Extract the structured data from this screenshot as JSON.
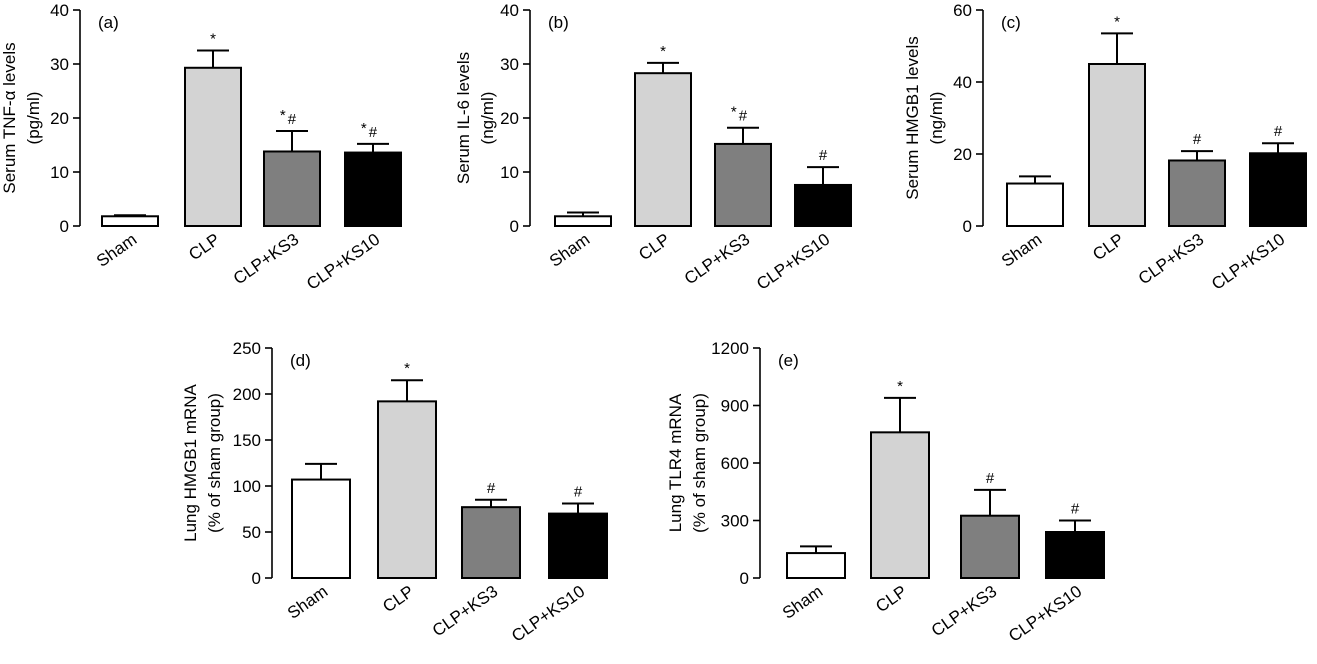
{
  "colors": {
    "Sham": "#ffffff",
    "CLP": "#d3d3d3",
    "CLP+KS3": "#7f7f7f",
    "CLP+KS10": "#000000",
    "axis": "#000000"
  },
  "chart_data": [
    {
      "type": "bar",
      "panel": "(a)",
      "categories": [
        "Sham",
        "CLP",
        "CLP+KS3",
        "CLP+KS10"
      ],
      "values": [
        1.8,
        29.3,
        13.8,
        13.6
      ],
      "errors": [
        0.2,
        3.2,
        3.8,
        1.6
      ],
      "significance": [
        "",
        "*",
        "*#",
        "*#"
      ],
      "ylabel": [
        "Serum TNF-α levels",
        "(pg/ml)"
      ],
      "ylim": [
        0,
        40
      ],
      "yticks": [
        0,
        10,
        20,
        30,
        40
      ]
    },
    {
      "type": "bar",
      "panel": "(b)",
      "categories": [
        "Sham",
        "CLP",
        "CLP+KS3",
        "CLP+KS10"
      ],
      "values": [
        1.8,
        28.3,
        15.2,
        7.6
      ],
      "errors": [
        0.7,
        1.9,
        3.0,
        3.3
      ],
      "significance": [
        "",
        "*",
        "*#",
        "#"
      ],
      "ylabel": [
        "Serum IL-6 levels",
        "(ng/ml)"
      ],
      "ylim": [
        0,
        40
      ],
      "yticks": [
        0,
        10,
        20,
        30,
        40
      ]
    },
    {
      "type": "bar",
      "panel": "(c)",
      "categories": [
        "Sham",
        "CLP",
        "CLP+KS3",
        "CLP+KS10"
      ],
      "values": [
        11.8,
        45.0,
        18.2,
        20.2
      ],
      "errors": [
        2.0,
        8.5,
        2.6,
        2.8
      ],
      "significance": [
        "",
        "*",
        "#",
        "#"
      ],
      "ylabel": [
        "Serum HMGB1 levels",
        "(ng/ml)"
      ],
      "ylim": [
        0,
        60
      ],
      "yticks": [
        0,
        20,
        40,
        60
      ]
    },
    {
      "type": "bar",
      "panel": "(d)",
      "categories": [
        "Sham",
        "CLP",
        "CLP+KS3",
        "CLP+KS10"
      ],
      "values": [
        107,
        192,
        77,
        70
      ],
      "errors": [
        17,
        23,
        8,
        11
      ],
      "significance": [
        "",
        "*",
        "#",
        "#"
      ],
      "ylabel": [
        "Lung HMGB1 mRNA",
        "(% of sham group)"
      ],
      "ylim": [
        0,
        250
      ],
      "yticks": [
        0,
        50,
        100,
        150,
        200,
        250
      ]
    },
    {
      "type": "bar",
      "panel": "(e)",
      "categories": [
        "Sham",
        "CLP",
        "CLP+KS3",
        "CLP+KS10"
      ],
      "values": [
        130,
        760,
        325,
        240
      ],
      "errors": [
        35,
        180,
        135,
        60
      ],
      "significance": [
        "",
        "*",
        "#",
        "#"
      ],
      "ylabel": [
        "Lung TLR4 mRNA",
        "(% of sham group)"
      ],
      "ylim": [
        0,
        1200
      ],
      "yticks": [
        0,
        300,
        600,
        900,
        1200
      ]
    }
  ]
}
